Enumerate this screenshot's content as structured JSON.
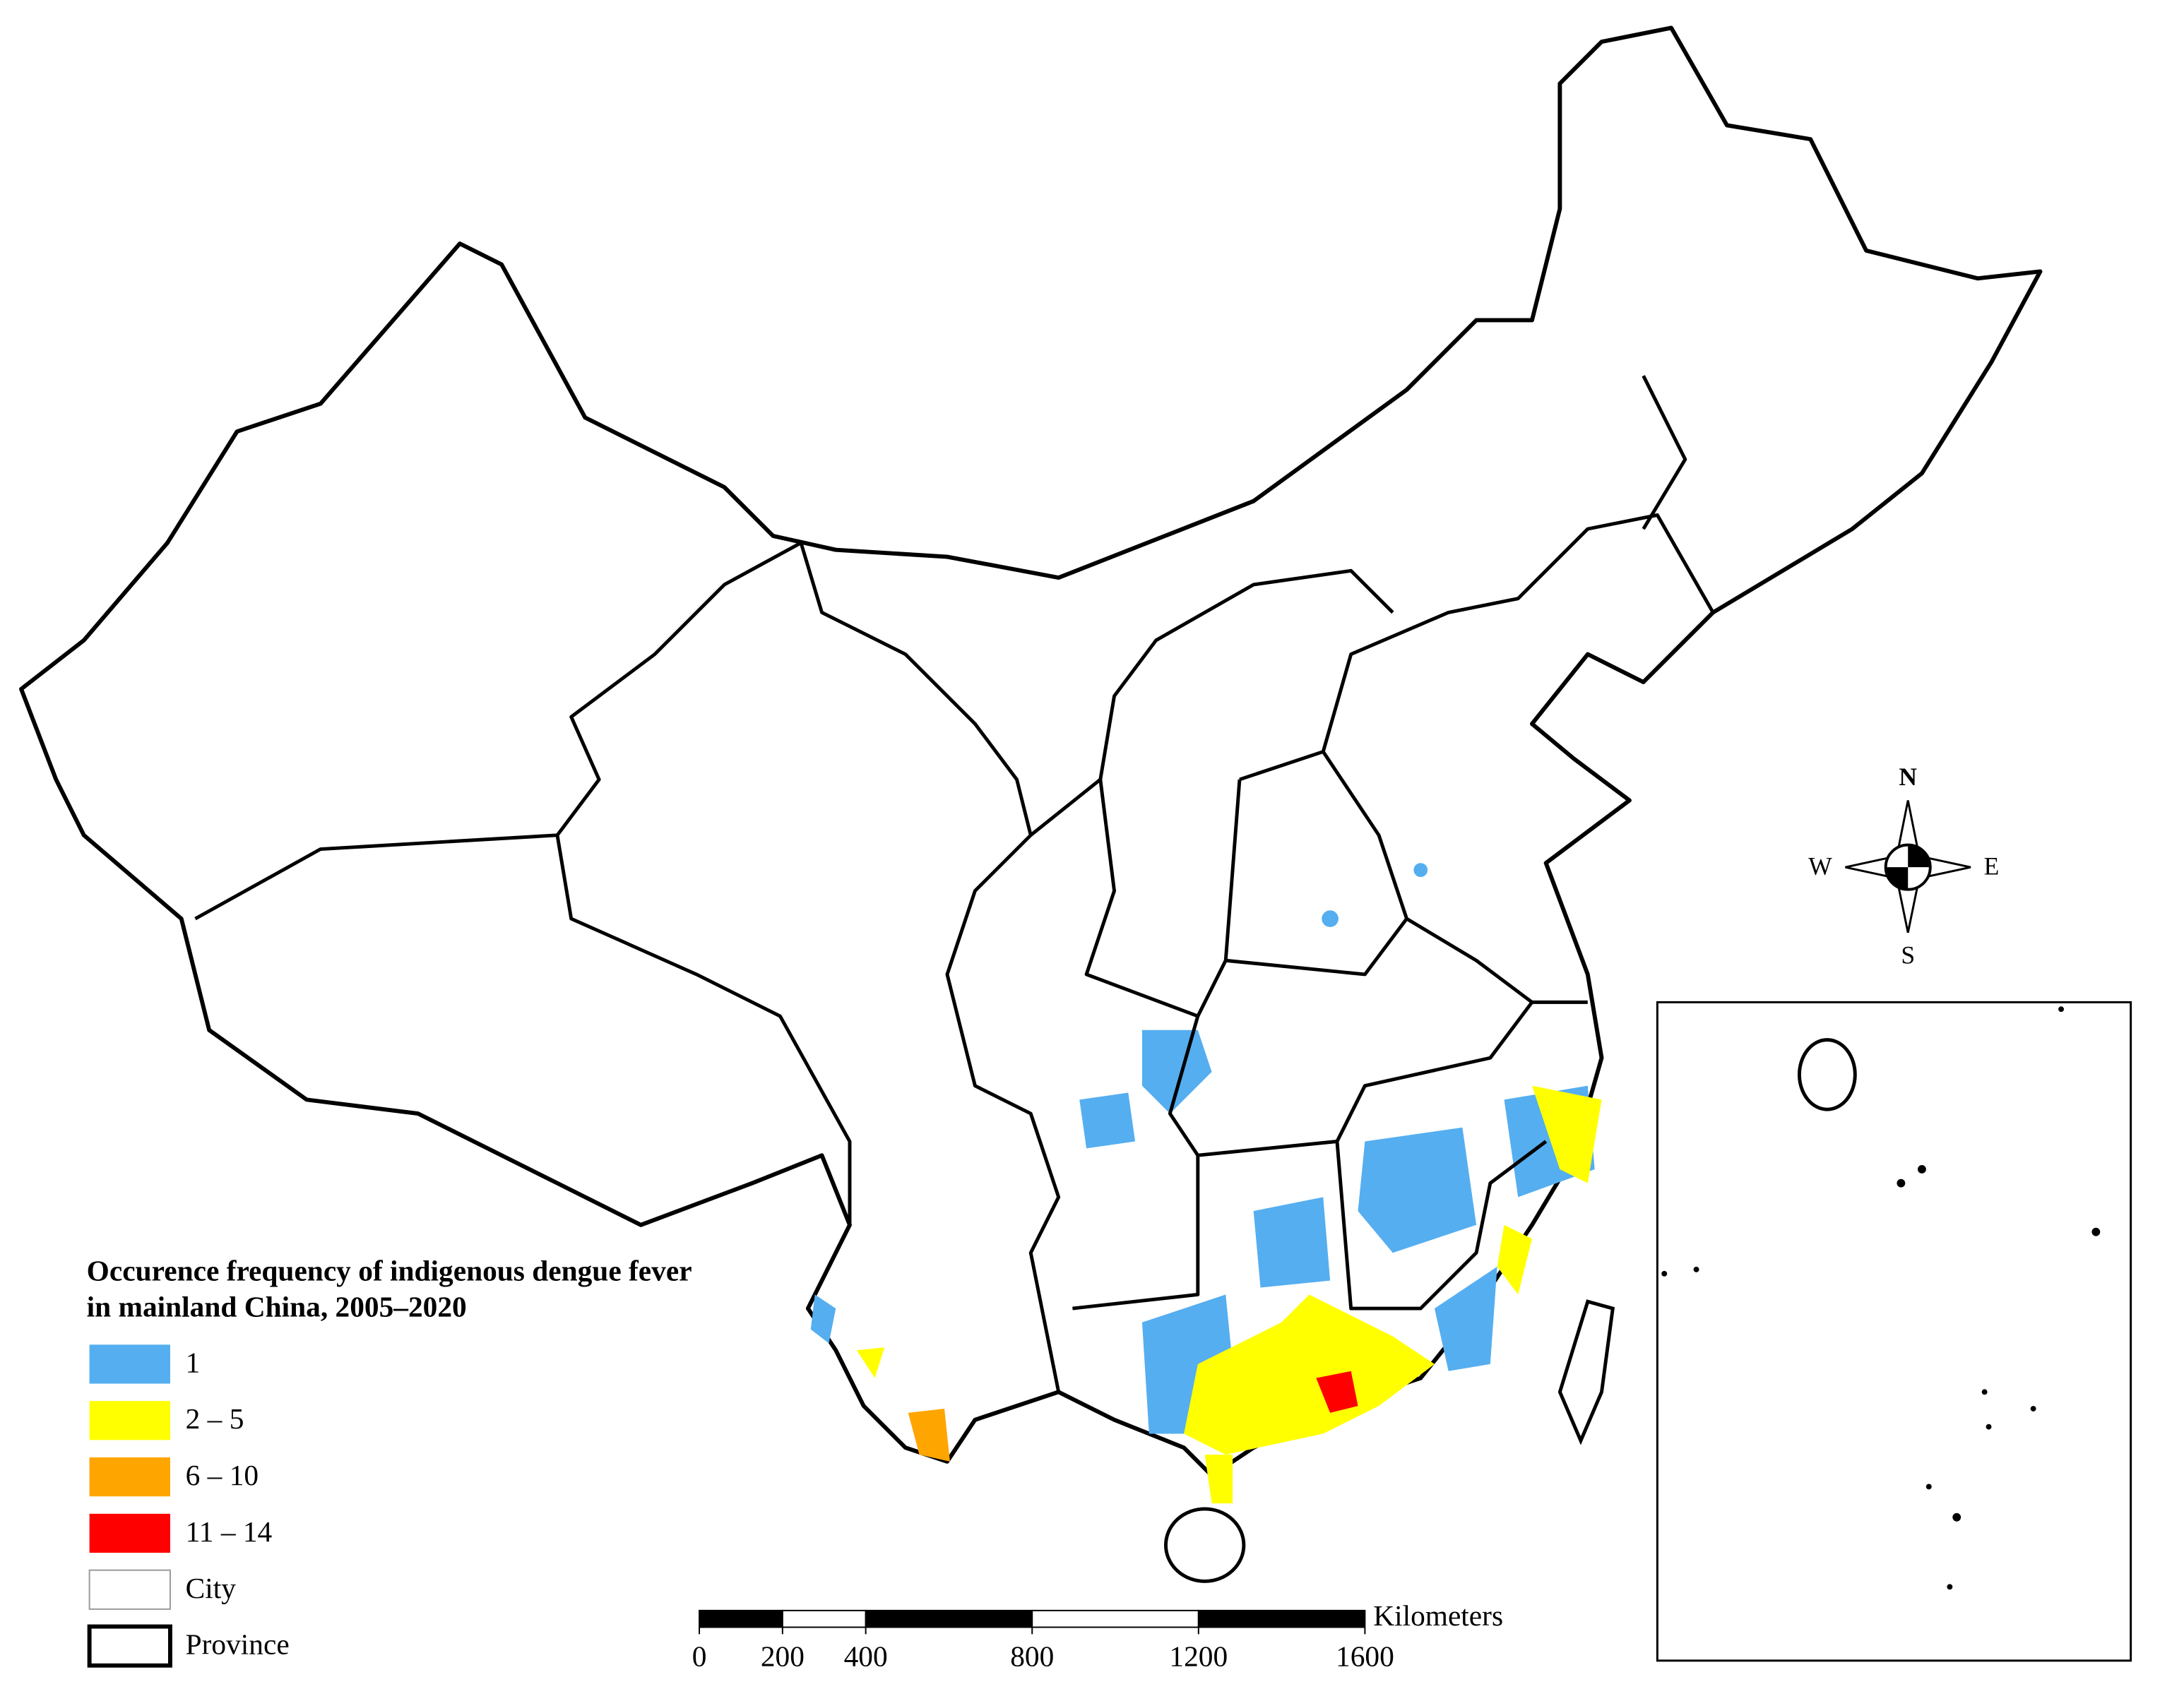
{
  "legend_title_lines": [
    "Occurence frequency of indigenous dengue fever",
    "in mainland China, 2005–2020"
  ],
  "legend": [
    {
      "label": "1",
      "color": "#55aef0"
    },
    {
      "label": "2 – 5",
      "color": "#ffff00"
    },
    {
      "label": "6 – 10",
      "color": "#ffa500"
    },
    {
      "label": "11 – 14",
      "color": "#ff0000"
    },
    {
      "label": "City",
      "color": "#ffffff"
    },
    {
      "label": "Province",
      "color": "#ffffff"
    }
  ],
  "compass": {
    "north": "N",
    "south": "S",
    "east": "E",
    "west": "W"
  },
  "scale_bar": {
    "unit": "Kilometers",
    "ticks": [
      0,
      200,
      400,
      800,
      1200,
      1600
    ]
  }
}
